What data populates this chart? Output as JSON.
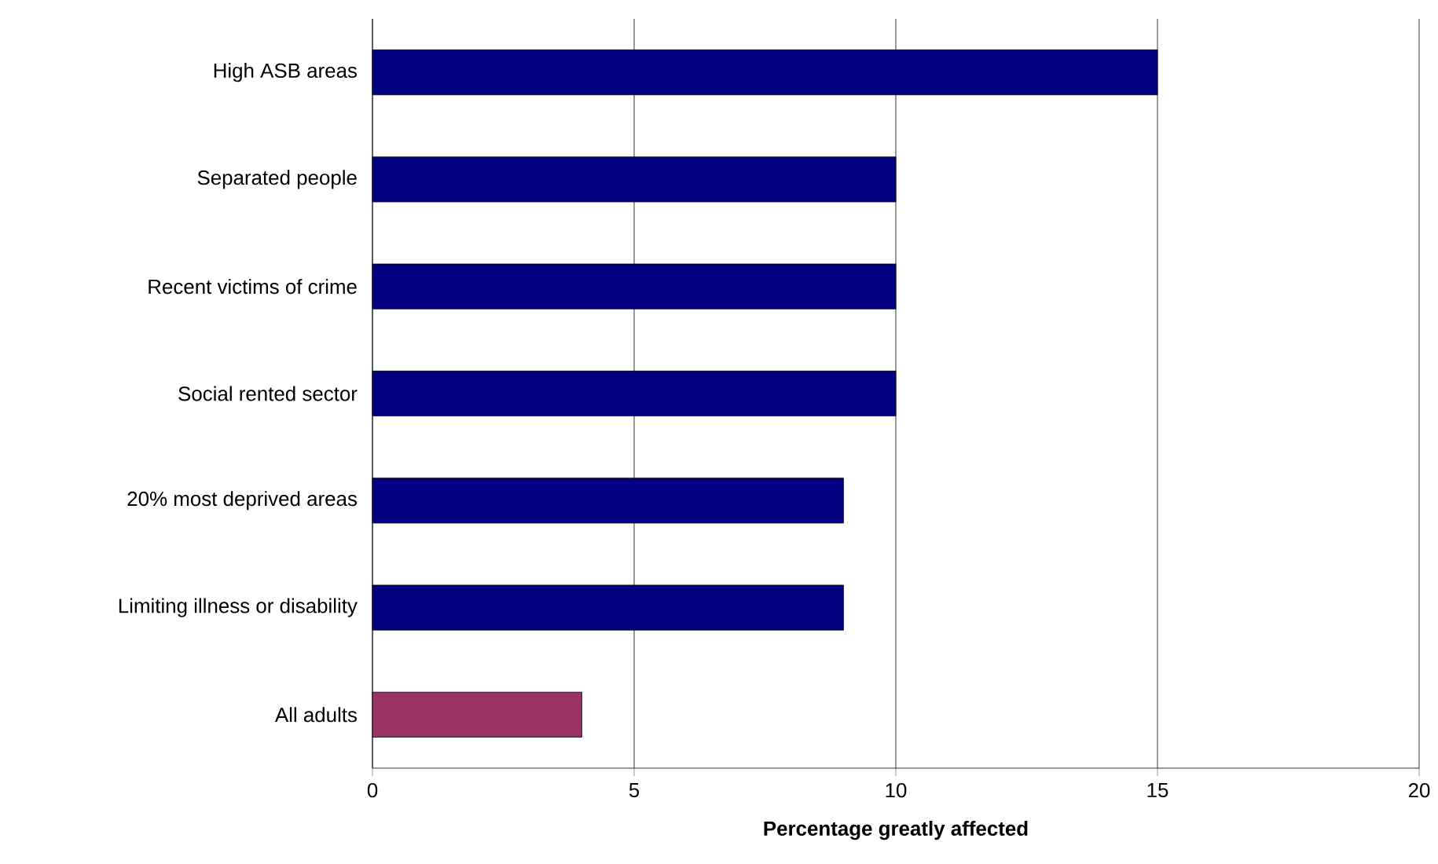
{
  "chart_data": {
    "type": "bar",
    "orientation": "horizontal",
    "xlabel": "Percentage greatly affected",
    "categories": [
      "High ASB areas",
      "Separated people",
      "Recent victims of crime",
      "Social rented sector",
      "20% most deprived areas",
      "Limiting illness or disability",
      "All adults"
    ],
    "values": [
      15,
      10,
      10,
      10,
      9,
      9,
      4
    ],
    "colors": [
      "#000080",
      "#000080",
      "#000080",
      "#000080",
      "#000080",
      "#000080",
      "#993366"
    ],
    "xlim": [
      0,
      20
    ],
    "xticks": [
      0,
      5,
      10,
      15,
      20
    ],
    "grid": "x"
  }
}
